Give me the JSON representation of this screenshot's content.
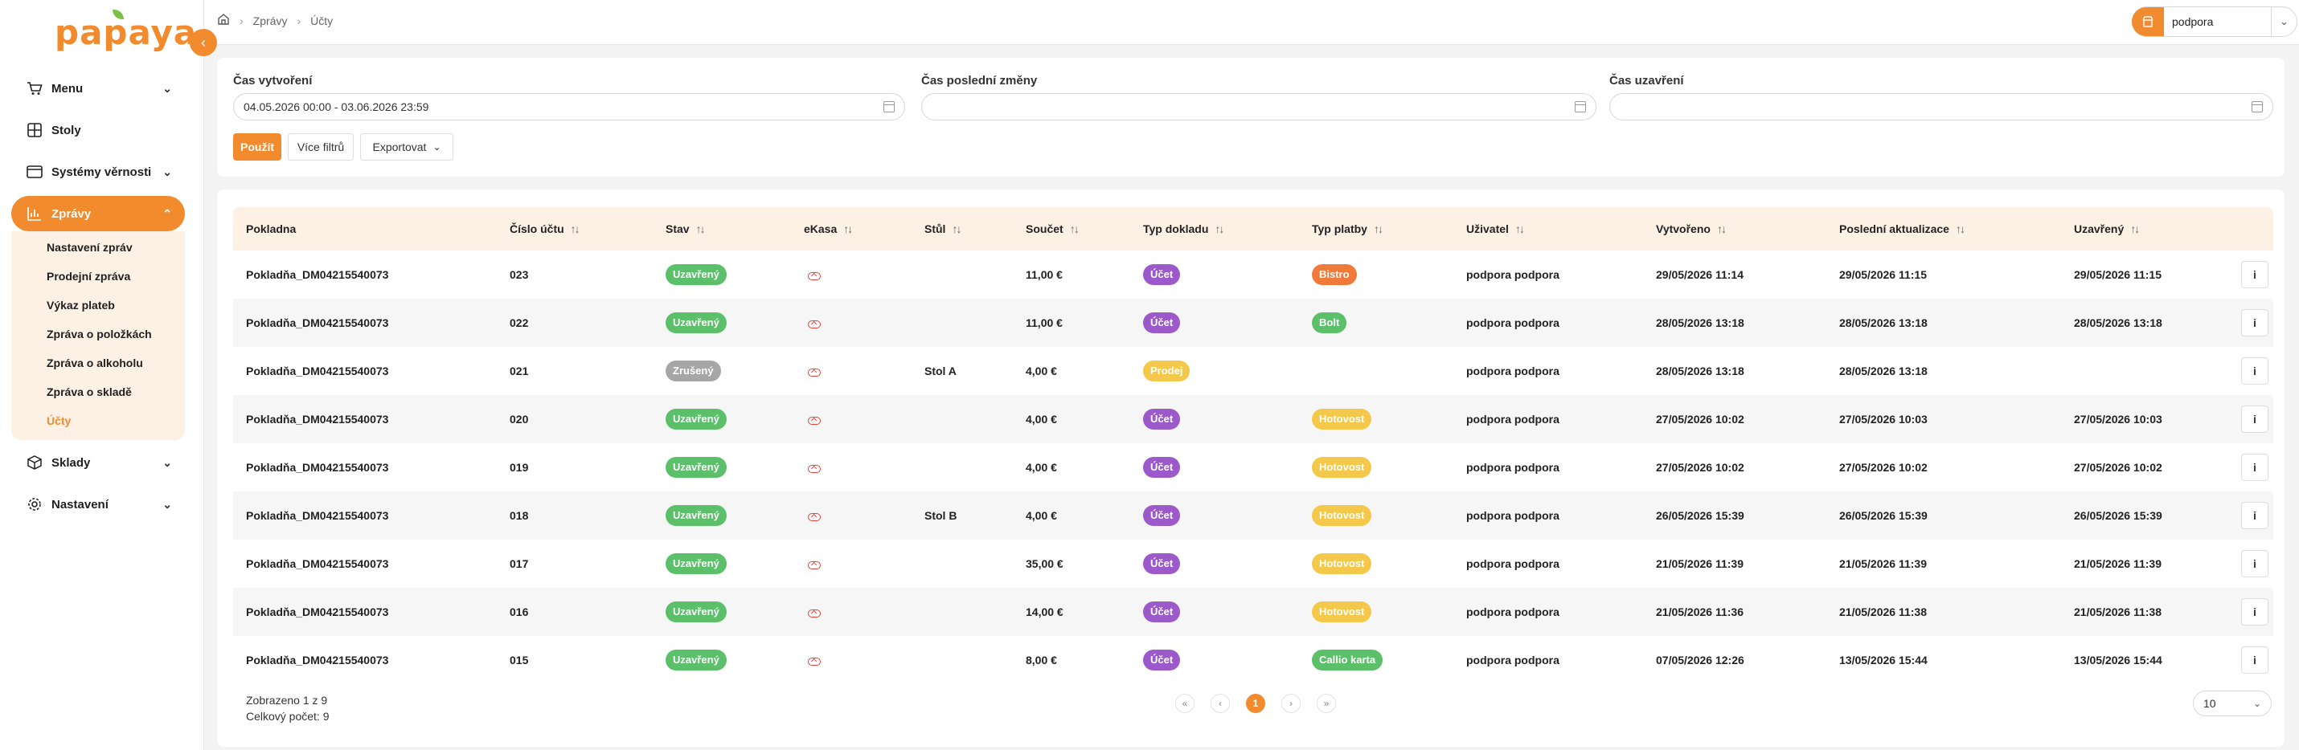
{
  "brand": {
    "logo": "papaya",
    "accent": "#f28a2e"
  },
  "sidebar": {
    "items": [
      {
        "label": "Menu",
        "icon": "cart-icon",
        "expandable": true
      },
      {
        "label": "Stoly",
        "icon": "table-grid-icon",
        "expandable": false
      },
      {
        "label": "Systémy věrnosti",
        "icon": "loyalty-card-icon",
        "expandable": true
      },
      {
        "label": "Zprávy",
        "icon": "bar-chart-icon",
        "expandable": true,
        "active": true,
        "children": [
          "Nastavení zpráv",
          "Prodejní zpráva",
          "Výkaz plateb",
          "Zpráva o položkách",
          "Zpráva o alkoholu",
          "Zpráva o skladě",
          "Účty"
        ]
      },
      {
        "label": "Sklady",
        "icon": "box-icon",
        "expandable": true
      },
      {
        "label": "Nastavení",
        "icon": "gear-icon",
        "expandable": true
      }
    ]
  },
  "breadcrumb": [
    "Zprávy",
    "Účty"
  ],
  "user": {
    "name": "podpora"
  },
  "filters": {
    "created_label": "Čas vytvoření",
    "created_value": "04.05.2026 00:00 - 03.06.2026 23:59",
    "changed_label": "Čas poslední změny",
    "changed_value": "",
    "closed_label": "Čas uzavření",
    "closed_value": "",
    "apply": "Použít",
    "more": "Více filtrů",
    "export": "Exportovat"
  },
  "table": {
    "headers": [
      "Pokladna",
      "Číslo účtu",
      "Stav",
      "eKasa",
      "Stůl",
      "Součet",
      "Typ dokladu",
      "Typ platby",
      "Uživatel",
      "Vytvořeno",
      "Poslední aktualizace",
      "Uzavřený"
    ],
    "rows": [
      {
        "pokladna": "Pokladňa_DM04215540073",
        "cislo": "023",
        "stav": "Uzavřený",
        "stav_color": "#5cbf6a",
        "stul": "",
        "soucet": "11,00 €",
        "typ": "Účet",
        "typ_color": "#9b59c9",
        "platba": "Bistro",
        "platba_color": "#f07a3a",
        "uzivatel": "podpora podpora",
        "vytvoreno": "29/05/2026 11:14",
        "aktualizace": "29/05/2026 11:15",
        "uzavreny": "29/05/2026 11:15"
      },
      {
        "pokladna": "Pokladňa_DM04215540073",
        "cislo": "022",
        "stav": "Uzavřený",
        "stav_color": "#5cbf6a",
        "stul": "",
        "soucet": "11,00 €",
        "typ": "Účet",
        "typ_color": "#9b59c9",
        "platba": "Bolt",
        "platba_color": "#5cbf6a",
        "uzivatel": "podpora podpora",
        "vytvoreno": "28/05/2026 13:18",
        "aktualizace": "28/05/2026 13:18",
        "uzavreny": "28/05/2026 13:18"
      },
      {
        "pokladna": "Pokladňa_DM04215540073",
        "cislo": "021",
        "stav": "Zrušený",
        "stav_color": "#a6a6a6",
        "stul": "Stol A",
        "soucet": "4,00 €",
        "typ": "Prodej",
        "typ_color": "#f4c84a",
        "platba": "",
        "platba_color": "",
        "uzivatel": "podpora podpora",
        "vytvoreno": "28/05/2026 13:18",
        "aktualizace": "28/05/2026 13:18",
        "uzavreny": ""
      },
      {
        "pokladna": "Pokladňa_DM04215540073",
        "cislo": "020",
        "stav": "Uzavřený",
        "stav_color": "#5cbf6a",
        "stul": "",
        "soucet": "4,00 €",
        "typ": "Účet",
        "typ_color": "#9b59c9",
        "platba": "Hotovost",
        "platba_color": "#f4c84a",
        "uzivatel": "podpora podpora",
        "vytvoreno": "27/05/2026 10:02",
        "aktualizace": "27/05/2026 10:03",
        "uzavreny": "27/05/2026 10:03"
      },
      {
        "pokladna": "Pokladňa_DM04215540073",
        "cislo": "019",
        "stav": "Uzavřený",
        "stav_color": "#5cbf6a",
        "stul": "",
        "soucet": "4,00 €",
        "typ": "Účet",
        "typ_color": "#9b59c9",
        "platba": "Hotovost",
        "platba_color": "#f4c84a",
        "uzivatel": "podpora podpora",
        "vytvoreno": "27/05/2026 10:02",
        "aktualizace": "27/05/2026 10:02",
        "uzavreny": "27/05/2026 10:02"
      },
      {
        "pokladna": "Pokladňa_DM04215540073",
        "cislo": "018",
        "stav": "Uzavřený",
        "stav_color": "#5cbf6a",
        "stul": "Stol B",
        "soucet": "4,00 €",
        "typ": "Účet",
        "typ_color": "#9b59c9",
        "platba": "Hotovost",
        "platba_color": "#f4c84a",
        "uzivatel": "podpora podpora",
        "vytvoreno": "26/05/2026 15:39",
        "aktualizace": "26/05/2026 15:39",
        "uzavreny": "26/05/2026 15:39"
      },
      {
        "pokladna": "Pokladňa_DM04215540073",
        "cislo": "017",
        "stav": "Uzavřený",
        "stav_color": "#5cbf6a",
        "stul": "",
        "soucet": "35,00 €",
        "typ": "Účet",
        "typ_color": "#9b59c9",
        "platba": "Hotovost",
        "platba_color": "#f4c84a",
        "uzivatel": "podpora podpora",
        "vytvoreno": "21/05/2026 11:39",
        "aktualizace": "21/05/2026 11:39",
        "uzavreny": "21/05/2026 11:39"
      },
      {
        "pokladna": "Pokladňa_DM04215540073",
        "cislo": "016",
        "stav": "Uzavřený",
        "stav_color": "#5cbf6a",
        "stul": "",
        "soucet": "14,00 €",
        "typ": "Účet",
        "typ_color": "#9b59c9",
        "platba": "Hotovost",
        "platba_color": "#f4c84a",
        "uzivatel": "podpora podpora",
        "vytvoreno": "21/05/2026 11:36",
        "aktualizace": "21/05/2026 11:38",
        "uzavreny": "21/05/2026 11:38"
      },
      {
        "pokladna": "Pokladňa_DM04215540073",
        "cislo": "015",
        "stav": "Uzavřený",
        "stav_color": "#5cbf6a",
        "stul": "",
        "soucet": "8,00 €",
        "typ": "Účet",
        "typ_color": "#9b59c9",
        "platba": "Callio karta",
        "platba_color": "#5cbf6a",
        "uzivatel": "podpora podpora",
        "vytvoreno": "07/05/2026 12:26",
        "aktualizace": "13/05/2026 15:44",
        "uzavreny": "13/05/2026 15:44"
      }
    ],
    "info_label": "i"
  },
  "footer": {
    "shown": "Zobrazeno 1 z 9",
    "total": "Celkový počet: 9",
    "current_page": "1",
    "page_size": "10"
  }
}
